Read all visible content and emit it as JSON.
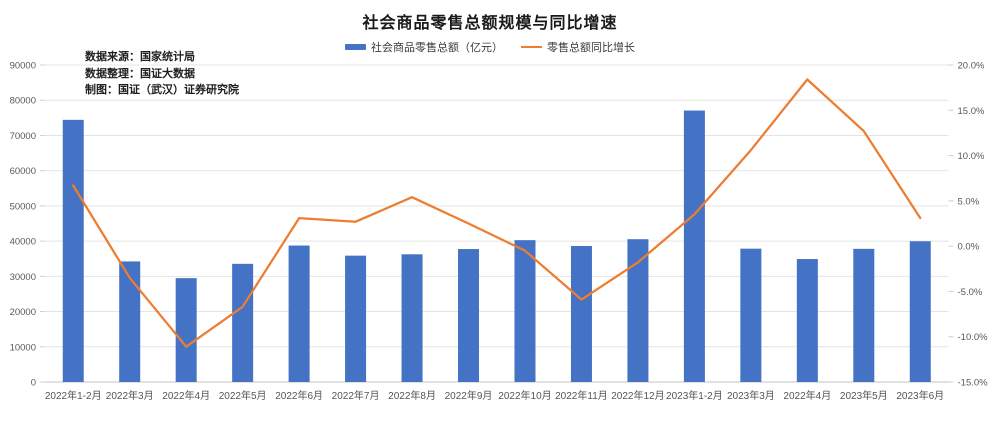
{
  "title": "社会商品零售总额规模与同比增速",
  "source_notes": [
    "数据来源：国家统计局",
    "数据整理：国证大数据",
    "制图：国证（武汉）证券研究院"
  ],
  "legend": {
    "bar_label": "社会商品零售总额（亿元）",
    "line_label": "零售总额同比增长"
  },
  "colors": {
    "bar": "#4472C4",
    "line": "#ED7D31",
    "grid": "#e4e4e4",
    "baseline": "#c3c3c3",
    "tick": "#cfcfcf",
    "axis_text": "#595959",
    "xlabel_text": "#555555"
  },
  "chart_data": {
    "type": "bar+line",
    "title": "社会商品零售总额规模与同比增速",
    "categories": [
      "2022年1-2月",
      "2022年3月",
      "2022年4月",
      "2022年5月",
      "2022年6月",
      "2022年7月",
      "2022年8月",
      "2022年9月",
      "2022年10月",
      "2022年11月",
      "2022年12月",
      "2023年1-2月",
      "2023年3月",
      "2022年4月",
      "2023年5月",
      "2023年6月"
    ],
    "series": [
      {
        "name": "社会商品零售总额（亿元）",
        "type": "bar",
        "axis": "left",
        "color": "#4472C4",
        "values": [
          74426,
          34233,
          29483,
          33547,
          38742,
          35870,
          36258,
          37745,
          40271,
          38615,
          40542,
          77067,
          37855,
          34910,
          37803,
          39951
        ]
      },
      {
        "name": "零售总额同比增长",
        "type": "line",
        "axis": "right",
        "color": "#ED7D31",
        "values": [
          6.7,
          -3.5,
          -11.1,
          -6.7,
          3.1,
          2.7,
          5.4,
          2.5,
          -0.5,
          -5.9,
          -1.8,
          3.5,
          10.6,
          18.4,
          12.7,
          3.1
        ]
      }
    ],
    "left_axis": {
      "min": 0,
      "max": 90000,
      "step": 10000,
      "tick_labels": [
        "0",
        "10000",
        "20000",
        "30000",
        "40000",
        "50000",
        "60000",
        "70000",
        "80000",
        "90000"
      ]
    },
    "right_axis": {
      "min": -15,
      "max": 20,
      "step": 5,
      "tick_labels": [
        "-15.0%",
        "-10.0%",
        "-5.0%",
        "0.0%",
        "5.0%",
        "10.0%",
        "15.0%",
        "20.0%"
      ]
    },
    "grid": true,
    "legend_position": "top"
  }
}
